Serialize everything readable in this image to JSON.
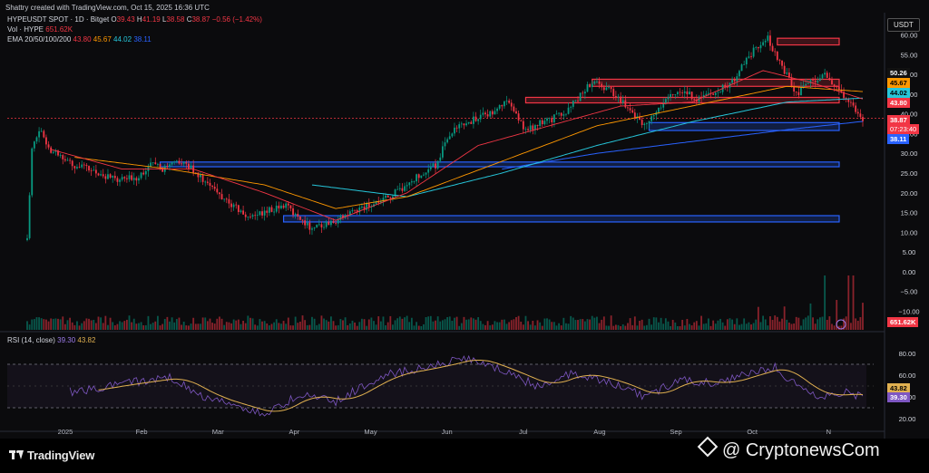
{
  "header": {
    "created_by": "Shattry created with TradingView.com, Oct 15, 2025 16:36 UTC"
  },
  "legend": {
    "symbol": "HYPEUSDT SPOT · 1D · Bitget",
    "o_label": "O",
    "o": "39.43",
    "h_label": "H",
    "h": "41.19",
    "l_label": "L",
    "l": "38.58",
    "c_label": "C",
    "c": "38.87",
    "change": "−0.56 (−1.42%)",
    "vol_label": "Vol · HYPE",
    "vol": "651.62K",
    "ema_label": "EMA 20/50/100/200",
    "ema20": "43.80",
    "ema50": "45.67",
    "ema100": "44.02",
    "ema200": "38.11",
    "rsi_label": "RSI (14, close)",
    "rsi": "39.30",
    "rsi_ma": "43.82"
  },
  "currency_button": "USDT",
  "price_tags": {
    "high_mark": "50.26",
    "ema50": "45.67",
    "ema100": "44.02",
    "ema20": "43.80",
    "last": "38.87",
    "countdown": "07:23:40",
    "ema200": "38.11",
    "volume": "651.62K",
    "rsi_ma": "43.82",
    "rsi": "39.30"
  },
  "colors": {
    "up": "#089981",
    "down": "#f23645",
    "ema20": "#f23645",
    "ema50": "#ff9800",
    "ema100": "#26c6da",
    "ema200": "#2962ff",
    "rsi": "#7e57c2",
    "rsi_ma": "#e0b050"
  },
  "branding": {
    "tradingview": "TradingView",
    "cryptonews": "@ CryptonewsCom"
  },
  "chart_data": {
    "type": "candlestick",
    "price_axis": {
      "ticks": [
        "60.00",
        "55.00",
        "50.00",
        "45.00",
        "40.00",
        "35.00",
        "30.00",
        "25.00",
        "20.00",
        "15.00",
        "10.00",
        "5.00",
        "0.00",
        "−5.00",
        "−10.00"
      ],
      "range": [
        -12,
        62
      ]
    },
    "rsi_axis": {
      "ticks": [
        "80.00",
        "60.00",
        "40.00",
        "20.00"
      ],
      "range": [
        15,
        90
      ],
      "bands": [
        30,
        70
      ]
    },
    "x_axis": {
      "ticks": [
        "2025",
        "Feb",
        "Mar",
        "Apr",
        "May",
        "Jun",
        "Jul",
        "Aug",
        "Sep",
        "Oct",
        "N"
      ]
    },
    "zones": [
      {
        "kind": "resistance",
        "from": 57.5,
        "to": 59.2
      },
      {
        "kind": "resistance",
        "from": 47.0,
        "to": 48.8
      },
      {
        "kind": "resistance",
        "from": 42.8,
        "to": 44.2
      },
      {
        "kind": "support",
        "from": 35.8,
        "to": 37.8
      },
      {
        "kind": "support",
        "from": 26.6,
        "to": 27.8
      },
      {
        "kind": "support",
        "from": 12.6,
        "to": 14.2
      }
    ],
    "anchors": [
      {
        "t": 0,
        "p": 8
      },
      {
        "t": 2,
        "p": 32
      },
      {
        "t": 5,
        "p": 36
      },
      {
        "t": 10,
        "p": 31
      },
      {
        "t": 20,
        "p": 27
      },
      {
        "t": 30,
        "p": 25
      },
      {
        "t": 38,
        "p": 23
      },
      {
        "t": 46,
        "p": 24
      },
      {
        "t": 52,
        "p": 27
      },
      {
        "t": 58,
        "p": 26
      },
      {
        "t": 64,
        "p": 28
      },
      {
        "t": 70,
        "p": 26
      },
      {
        "t": 76,
        "p": 22
      },
      {
        "t": 84,
        "p": 18
      },
      {
        "t": 92,
        "p": 14
      },
      {
        "t": 100,
        "p": 15
      },
      {
        "t": 108,
        "p": 17
      },
      {
        "t": 114,
        "p": 14
      },
      {
        "t": 120,
        "p": 11
      },
      {
        "t": 130,
        "p": 13
      },
      {
        "t": 140,
        "p": 16
      },
      {
        "t": 150,
        "p": 18
      },
      {
        "t": 160,
        "p": 22
      },
      {
        "t": 166,
        "p": 25
      },
      {
        "t": 172,
        "p": 27
      },
      {
        "t": 178,
        "p": 35
      },
      {
        "t": 186,
        "p": 38
      },
      {
        "t": 194,
        "p": 40
      },
      {
        "t": 202,
        "p": 43
      },
      {
        "t": 210,
        "p": 36
      },
      {
        "t": 218,
        "p": 38
      },
      {
        "t": 226,
        "p": 40
      },
      {
        "t": 232,
        "p": 44
      },
      {
        "t": 238,
        "p": 48
      },
      {
        "t": 246,
        "p": 46
      },
      {
        "t": 254,
        "p": 41
      },
      {
        "t": 260,
        "p": 37
      },
      {
        "t": 266,
        "p": 42
      },
      {
        "t": 274,
        "p": 46
      },
      {
        "t": 282,
        "p": 44
      },
      {
        "t": 290,
        "p": 45
      },
      {
        "t": 298,
        "p": 49
      },
      {
        "t": 306,
        "p": 56
      },
      {
        "t": 312,
        "p": 59
      },
      {
        "t": 318,
        "p": 52
      },
      {
        "t": 324,
        "p": 45
      },
      {
        "t": 330,
        "p": 48
      },
      {
        "t": 336,
        "p": 50
      },
      {
        "t": 342,
        "p": 46
      },
      {
        "t": 348,
        "p": 42
      },
      {
        "t": 352,
        "p": 38.87
      }
    ],
    "ema20_anchors": [
      {
        "t": 10,
        "p": 31
      },
      {
        "t": 40,
        "p": 26
      },
      {
        "t": 70,
        "p": 26
      },
      {
        "t": 100,
        "p": 20
      },
      {
        "t": 130,
        "p": 13
      },
      {
        "t": 160,
        "p": 20
      },
      {
        "t": 190,
        "p": 32
      },
      {
        "t": 220,
        "p": 37
      },
      {
        "t": 250,
        "p": 42
      },
      {
        "t": 280,
        "p": 43
      },
      {
        "t": 310,
        "p": 51
      },
      {
        "t": 330,
        "p": 48
      },
      {
        "t": 352,
        "p": 43.8
      }
    ],
    "ema50_anchors": [
      {
        "t": 20,
        "p": 29
      },
      {
        "t": 60,
        "p": 26
      },
      {
        "t": 100,
        "p": 22
      },
      {
        "t": 130,
        "p": 16
      },
      {
        "t": 160,
        "p": 19
      },
      {
        "t": 200,
        "p": 28
      },
      {
        "t": 240,
        "p": 37
      },
      {
        "t": 280,
        "p": 42
      },
      {
        "t": 320,
        "p": 47
      },
      {
        "t": 352,
        "p": 45.67
      }
    ],
    "ema100_anchors": [
      {
        "t": 120,
        "p": 22
      },
      {
        "t": 160,
        "p": 19
      },
      {
        "t": 200,
        "p": 25
      },
      {
        "t": 240,
        "p": 32
      },
      {
        "t": 280,
        "p": 38
      },
      {
        "t": 320,
        "p": 43
      },
      {
        "t": 352,
        "p": 44.02
      }
    ],
    "ema200_anchors": [
      {
        "t": 200,
        "p": 26
      },
      {
        "t": 240,
        "p": 30
      },
      {
        "t": 280,
        "p": 33
      },
      {
        "t": 320,
        "p": 36
      },
      {
        "t": 352,
        "p": 38.11
      }
    ],
    "rsi_anchors": [
      {
        "t": 20,
        "p": 45
      },
      {
        "t": 40,
        "p": 52
      },
      {
        "t": 60,
        "p": 58
      },
      {
        "t": 75,
        "p": 40
      },
      {
        "t": 90,
        "p": 30
      },
      {
        "t": 100,
        "p": 24
      },
      {
        "t": 115,
        "p": 42
      },
      {
        "t": 130,
        "p": 36
      },
      {
        "t": 150,
        "p": 60
      },
      {
        "t": 170,
        "p": 68
      },
      {
        "t": 185,
        "p": 76
      },
      {
        "t": 200,
        "p": 64
      },
      {
        "t": 215,
        "p": 50
      },
      {
        "t": 230,
        "p": 62
      },
      {
        "t": 245,
        "p": 54
      },
      {
        "t": 260,
        "p": 40
      },
      {
        "t": 275,
        "p": 56
      },
      {
        "t": 290,
        "p": 52
      },
      {
        "t": 305,
        "p": 62
      },
      {
        "t": 315,
        "p": 68
      },
      {
        "t": 325,
        "p": 48
      },
      {
        "t": 335,
        "p": 40
      },
      {
        "t": 345,
        "p": 44
      },
      {
        "t": 352,
        "p": 39.3
      }
    ]
  }
}
